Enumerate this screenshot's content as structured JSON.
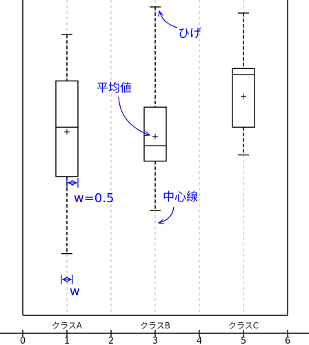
{
  "chart_data": {
    "type": "boxplot",
    "x_ticks": [
      "0",
      "1",
      "2",
      "3",
      "4",
      "5",
      "6"
    ],
    "xlim": [
      0,
      6
    ],
    "grid": "vertical dashed",
    "categories": [
      {
        "label": "クラスA",
        "x": 1,
        "whisker_low": 20,
        "q1": 45,
        "median": 61,
        "mean": 59.5,
        "q3": 76,
        "whisker_high": 91
      },
      {
        "label": "クラスB",
        "x": 3,
        "whisker_low": 34,
        "q1": 50,
        "median": 55,
        "mean": 58,
        "q3": 67.5,
        "whisker_high": 100
      },
      {
        "label": "クラスC",
        "x": 5,
        "whisker_low": 52,
        "q1": 61,
        "median": 78,
        "mean": 71,
        "q3": 80,
        "whisker_high": 98
      }
    ],
    "box_width": 0.5,
    "annotations": {
      "whisker": "ひげ",
      "mean": "平均値",
      "median": "中心線",
      "width_label": "w=0.5",
      "width_short": "w"
    },
    "colors": {
      "boxes": "#000000",
      "annotations": "#0000ee",
      "grid": "#b3b3b3"
    }
  }
}
